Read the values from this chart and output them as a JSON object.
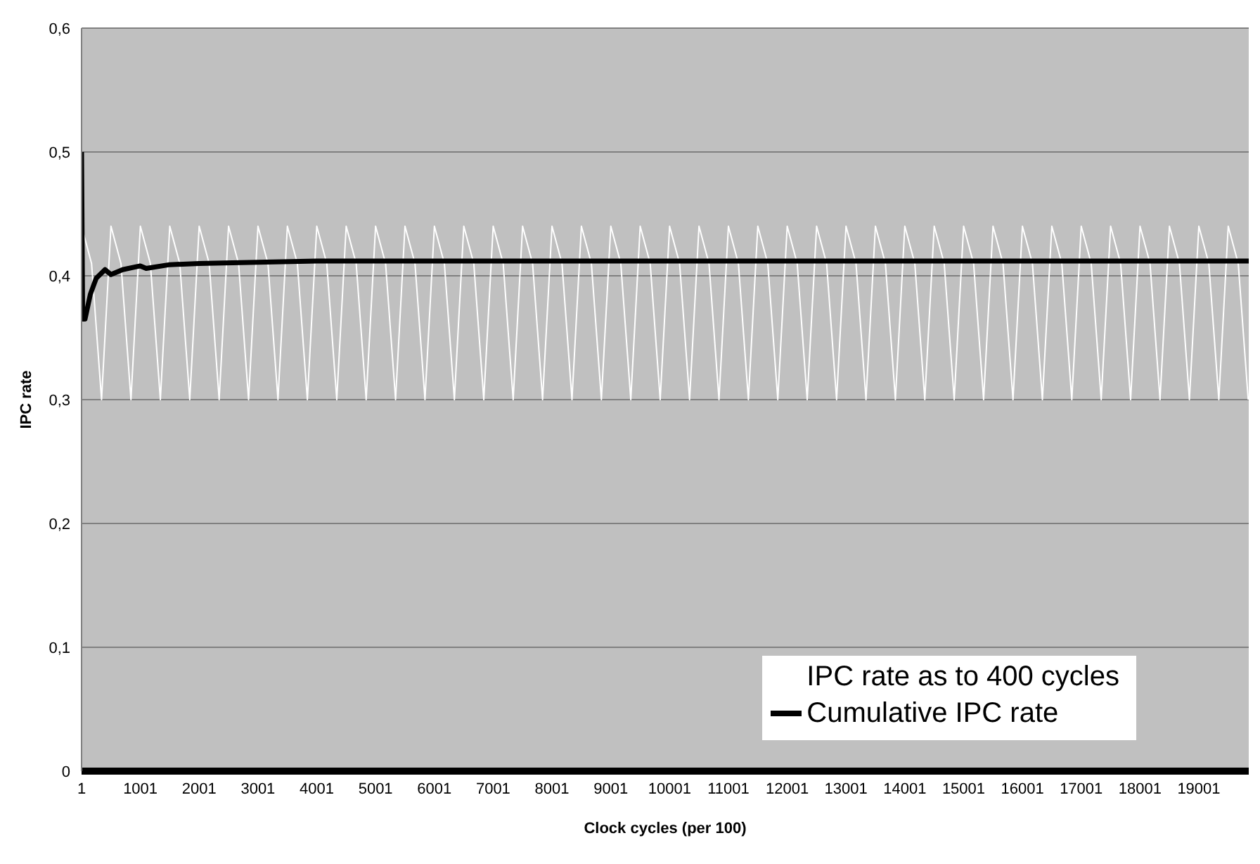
{
  "chart_data": {
    "type": "line",
    "xlabel": "Clock cycles (per 100)",
    "ylabel": "IPC rate",
    "xlim": [
      1,
      19850
    ],
    "xticks": [
      1,
      1001,
      2001,
      3001,
      4001,
      5001,
      6001,
      7001,
      8001,
      9001,
      10001,
      11001,
      12001,
      13001,
      14001,
      15001,
      16001,
      17001,
      18001,
      19001
    ],
    "ylim": [
      0,
      0.6
    ],
    "yticks": [
      {
        "value": 0,
        "label": "0"
      },
      {
        "value": 0.1,
        "label": "0,1"
      },
      {
        "value": 0.2,
        "label": "0,2"
      },
      {
        "value": 0.3,
        "label": "0,3"
      },
      {
        "value": 0.4,
        "label": "0,4"
      },
      {
        "value": 0.5,
        "label": "0,5"
      },
      {
        "value": 0.6,
        "label": "0,6"
      }
    ],
    "grid": "y",
    "legend": "bottom right",
    "marker": "none",
    "line_style": "solid",
    "series": [
      {
        "name": "IPC rate as to 400 cycles",
        "color": "#ffffff",
        "x": [
          1,
          171,
          341,
          501,
          671,
          841,
          1001,
          1171,
          1341,
          1501,
          1671,
          1841,
          2001,
          2171,
          2341,
          2501,
          2671,
          2841,
          3001,
          3171,
          3341,
          3501,
          3671,
          3841,
          4001,
          4171,
          4341,
          4501,
          4671,
          4841,
          5001,
          5171,
          5341,
          5501,
          5671,
          5841,
          6001,
          6171,
          6341,
          6501,
          6671,
          6841,
          7001,
          7171,
          7341,
          7501,
          7671,
          7841,
          8001,
          8171,
          8341,
          8501,
          8671,
          8841,
          9001,
          9171,
          9341,
          9501,
          9671,
          9841,
          10001,
          10171,
          10341,
          10501,
          10671,
          10841,
          11001,
          11171,
          11341,
          11501,
          11671,
          11841,
          12001,
          12171,
          12341,
          12501,
          12671,
          12841,
          13001,
          13171,
          13341,
          13501,
          13671,
          13841,
          14001,
          14171,
          14341,
          14501,
          14671,
          14841,
          15001,
          15171,
          15341,
          15501,
          15671,
          15841,
          16001,
          16171,
          16341,
          16501,
          16671,
          16841,
          17001,
          17171,
          17341,
          17501,
          17671,
          17841,
          18001,
          18171,
          18341,
          18501,
          18671,
          18841,
          19001,
          19171,
          19341,
          19501,
          19671,
          19841
        ],
        "values": [
          0.44,
          0.41,
          0.3,
          0.44,
          0.41,
          0.3,
          0.44,
          0.41,
          0.3,
          0.44,
          0.41,
          0.3,
          0.44,
          0.41,
          0.3,
          0.44,
          0.41,
          0.3,
          0.44,
          0.41,
          0.3,
          0.44,
          0.41,
          0.3,
          0.44,
          0.41,
          0.3,
          0.44,
          0.41,
          0.3,
          0.44,
          0.41,
          0.3,
          0.44,
          0.41,
          0.3,
          0.44,
          0.41,
          0.3,
          0.44,
          0.41,
          0.3,
          0.44,
          0.41,
          0.3,
          0.44,
          0.41,
          0.3,
          0.44,
          0.41,
          0.3,
          0.44,
          0.41,
          0.3,
          0.44,
          0.41,
          0.3,
          0.44,
          0.41,
          0.3,
          0.44,
          0.41,
          0.3,
          0.44,
          0.41,
          0.3,
          0.44,
          0.41,
          0.3,
          0.44,
          0.41,
          0.3,
          0.44,
          0.41,
          0.3,
          0.44,
          0.41,
          0.3,
          0.44,
          0.41,
          0.3,
          0.44,
          0.41,
          0.3,
          0.44,
          0.41,
          0.3,
          0.44,
          0.41,
          0.3,
          0.44,
          0.41,
          0.3,
          0.44,
          0.41,
          0.3,
          0.44,
          0.41,
          0.3,
          0.44,
          0.41,
          0.3,
          0.44,
          0.41,
          0.3,
          0.44,
          0.41,
          0.3,
          0.44,
          0.41,
          0.3,
          0.44,
          0.41,
          0.3,
          0.44,
          0.41,
          0.3,
          0.44,
          0.41,
          0.3
        ]
      },
      {
        "name": "Cumulative IPC rate",
        "color": "#000000",
        "x": [
          1,
          20,
          60,
          150,
          250,
          400,
          500,
          700,
          1000,
          1100,
          1500,
          2000,
          3000,
          4000,
          6000,
          10000,
          19850
        ],
        "values": [
          0.5,
          0.365,
          0.365,
          0.385,
          0.398,
          0.405,
          0.401,
          0.405,
          0.408,
          0.406,
          0.409,
          0.41,
          0.411,
          0.412,
          0.412,
          0.412,
          0.412
        ]
      }
    ]
  }
}
